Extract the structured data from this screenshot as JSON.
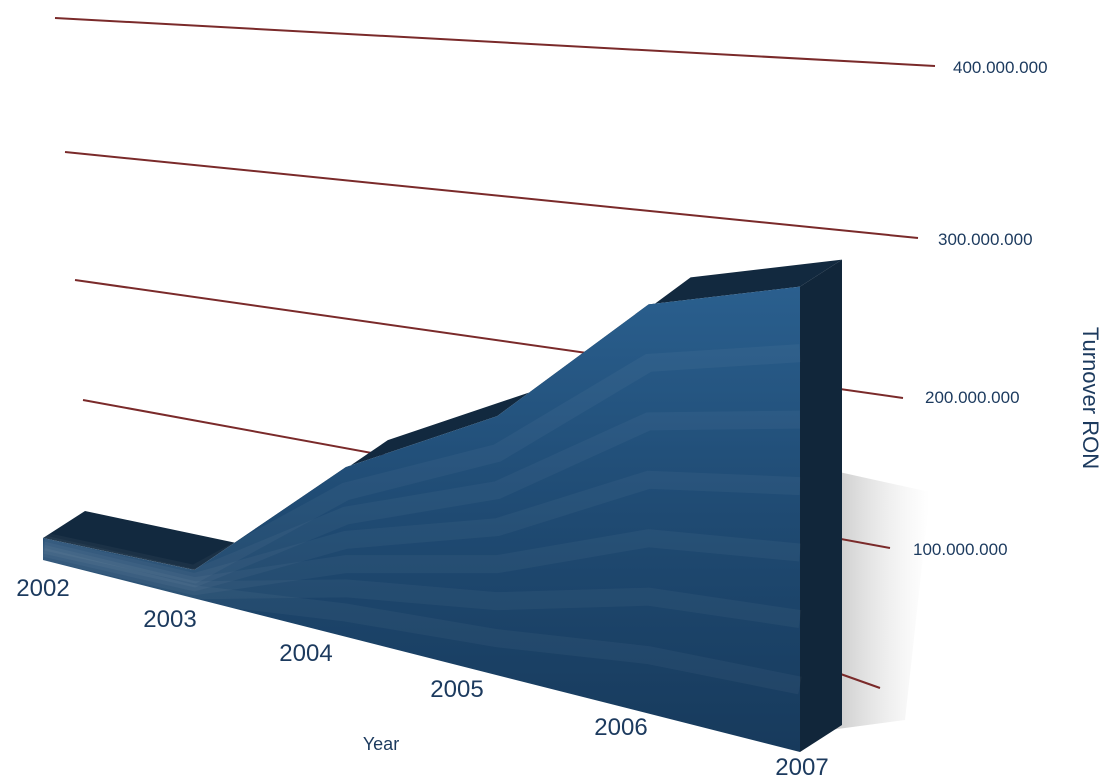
{
  "chart_data": {
    "type": "area",
    "style": "3d",
    "title": "",
    "xlabel": "Year",
    "ylabel": "Turnover RON",
    "categories": [
      "2002",
      "2003",
      "2004",
      "2005",
      "2006",
      "2007"
    ],
    "series": [
      {
        "values": [
          20000000,
          25000000,
          145000000,
          215000000,
          330000000,
          365000000
        ]
      }
    ],
    "y_ticks": [
      "100.000.000",
      "200.000.000",
      "300.000.000",
      "400.000.000"
    ],
    "ylim": [
      0,
      400000000
    ],
    "grid": true,
    "legend": "none"
  },
  "colors": {
    "area_front": "#1f4a72",
    "area_top": "#12293f",
    "area_side": "#11263a",
    "gridline": "#7a2a2a",
    "text": "#1c3a5e"
  }
}
